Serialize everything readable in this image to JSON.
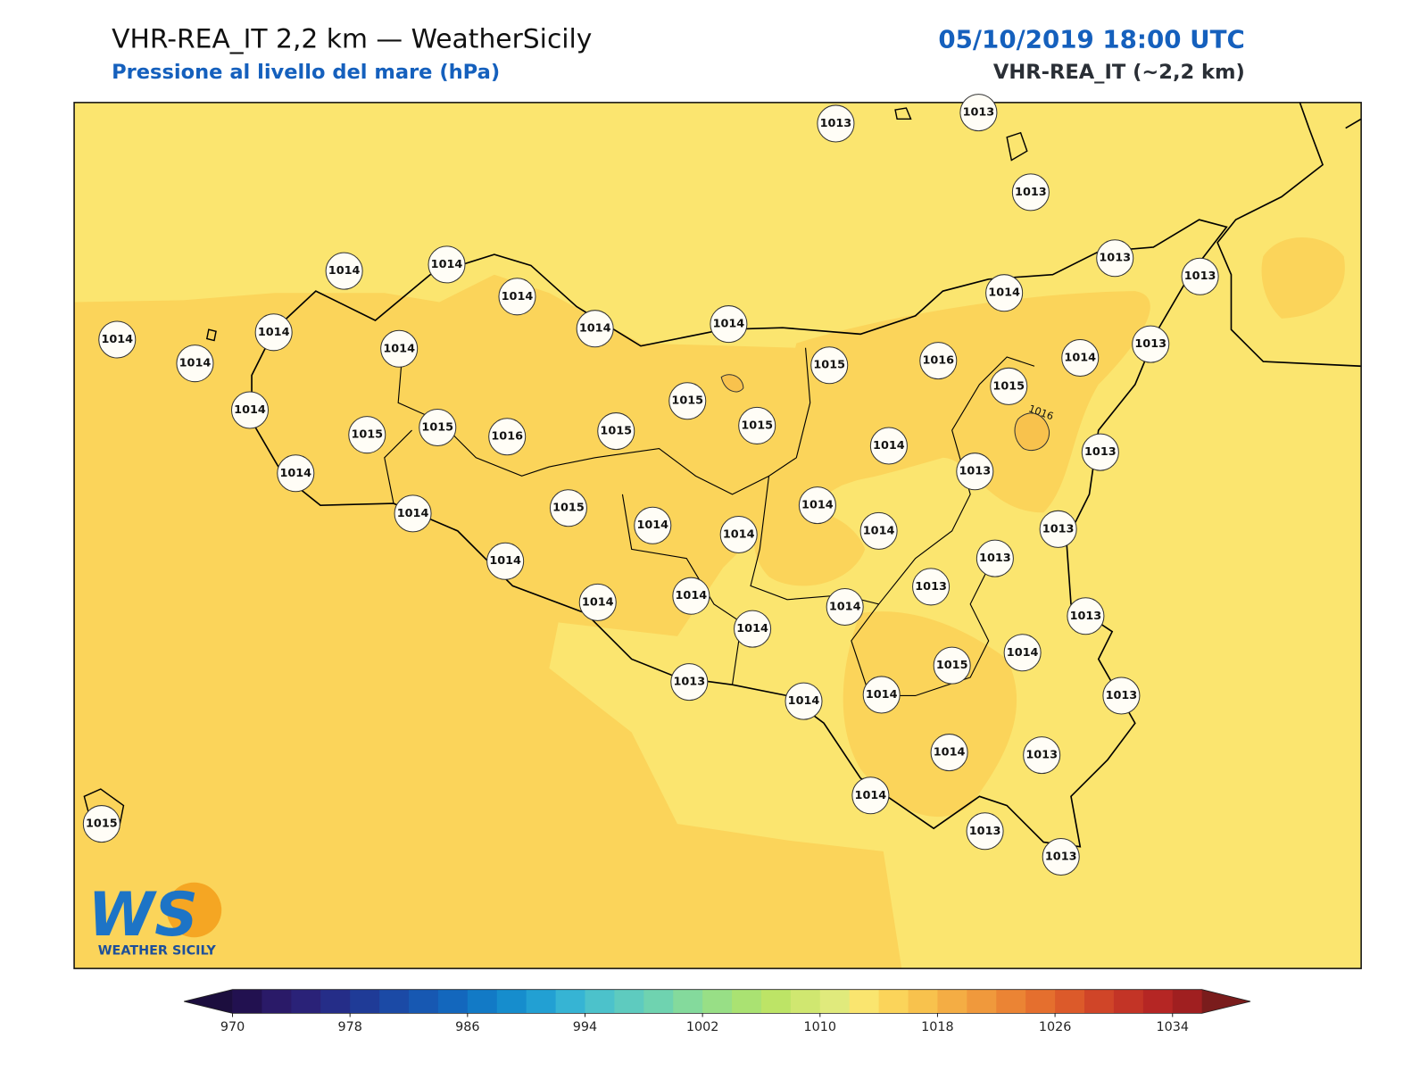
{
  "header": {
    "title": "VHR-REA_IT 2,2 km — WeatherSicily",
    "subtitle": "Pressione al livello del mare (hPa)",
    "timestamp": "05/10/2019 18:00 UTC",
    "model": "VHR-REA_IT (~2,2 km)"
  },
  "map": {
    "stations": [
      1013,
      1013,
      1013,
      1014,
      1014,
      1014,
      1014,
      1014,
      1014,
      1014,
      1014,
      1014,
      1013,
      1013,
      1014,
      1015,
      1016,
      1014,
      1013,
      1015,
      1015,
      1014,
      1015,
      1015,
      1016,
      1015,
      1015,
      1014,
      1013,
      1013,
      1014,
      1014,
      1015,
      1014,
      1014,
      1014,
      1014,
      1013,
      1013,
      1013,
      1014,
      1014,
      1014,
      1014,
      1014,
      1013,
      1014,
      1015,
      1013,
      1014,
      1014,
      1013,
      1014,
      1013,
      1014,
      1013,
      1013,
      1015
    ],
    "contour_labels": [
      1016
    ]
  },
  "colorbar": {
    "range": [
      970,
      1036
    ],
    "ticks": [
      970,
      978,
      986,
      994,
      1002,
      1010,
      1018,
      1026,
      1034
    ],
    "colors": [
      "#221150",
      "#2a1a68",
      "#2a2278",
      "#252d88",
      "#1f3b97",
      "#1b4aa6",
      "#1758b2",
      "#1367bd",
      "#127ac6",
      "#168dcd",
      "#22a0d3",
      "#36b4d4",
      "#4cc2cb",
      "#5ecbbf",
      "#6fd3b0",
      "#84da9c",
      "#98df86",
      "#aae272",
      "#bde466",
      "#d0e770",
      "#e0ea7c",
      "#fae56f",
      "#fbd45a",
      "#f8c24d",
      "#f4ad44",
      "#f0993c",
      "#eb8434",
      "#e56f2e",
      "#dc5a2a",
      "#d04528",
      "#c33426",
      "#b52624",
      "#a01f20"
    ],
    "under_color": "#1c0e3e",
    "over_color": "#7a1c1c"
  },
  "logo": {
    "mark": "WS",
    "text": "WEATHER SICILY"
  }
}
